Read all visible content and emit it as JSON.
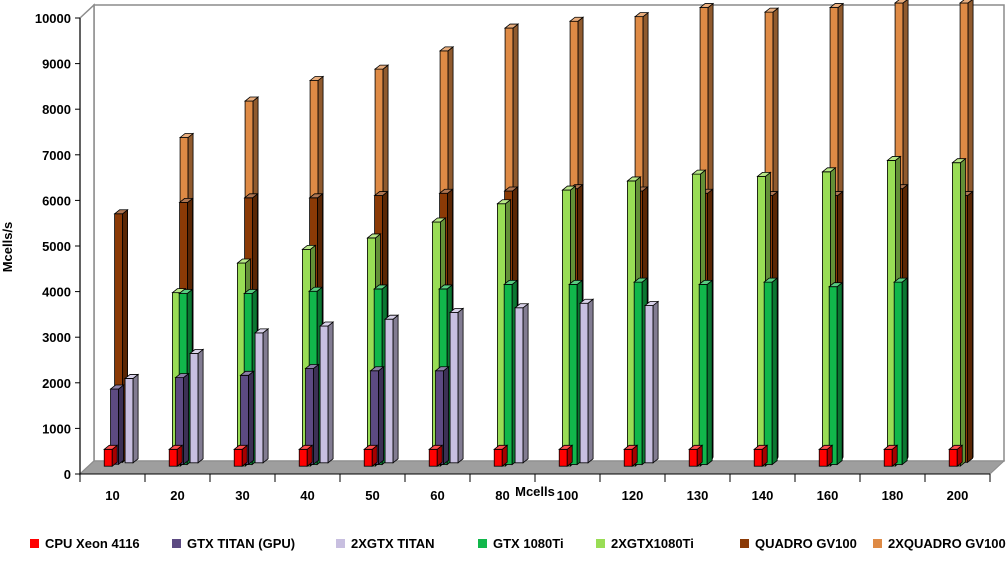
{
  "chart_data": {
    "type": "bar",
    "style": "3d-clustered",
    "title": "",
    "xlabel": "Mcells",
    "ylabel": "Mcells/s",
    "ylim": [
      0,
      10000
    ],
    "yticks": [
      "0",
      "1000",
      "2000",
      "3000",
      "4000",
      "5000",
      "6000",
      "7000",
      "8000",
      "9000",
      "10000"
    ],
    "grid": false,
    "legend_position": "bottom",
    "categories": [
      "10",
      "20",
      "30",
      "40",
      "50",
      "60",
      "80",
      "100",
      "120",
      "130",
      "140",
      "160",
      "180",
      "200"
    ],
    "series": [
      {
        "name": "CPU Xeon 4116",
        "color": "#ff0000",
        "values": [
          370,
          370,
          370,
          370,
          370,
          370,
          370,
          370,
          370,
          370,
          370,
          370,
          370,
          370
        ]
      },
      {
        "name": "GTX TITAN (GPU)",
        "color": "#5c4a82",
        "values": [
          1650,
          1900,
          1950,
          2100,
          2050,
          2050,
          null,
          null,
          null,
          null,
          null,
          null,
          null,
          null
        ]
      },
      {
        "name": "2XGTX TITAN",
        "color": "#c8bfe0",
        "values": [
          1850,
          2400,
          2850,
          3000,
          3150,
          3300,
          3400,
          3500,
          3450,
          null,
          null,
          null,
          null,
          null
        ]
      },
      {
        "name": "GTX 1080Ti",
        "color": "#11b74b",
        "values": [
          null,
          3750,
          3750,
          3800,
          3850,
          3850,
          3950,
          3950,
          4000,
          3950,
          4000,
          3900,
          4000,
          null
        ]
      },
      {
        "name": "2XGTX1080Ti",
        "color": "#99dd55",
        "values": [
          null,
          3800,
          4450,
          4750,
          5000,
          5350,
          5750,
          6050,
          6250,
          6400,
          6350,
          6450,
          6700,
          6650
        ]
      },
      {
        "name": "QUADRO GV100",
        "color": "#8b3a06",
        "values": [
          5450,
          5700,
          5800,
          5800,
          5850,
          5900,
          5950,
          6000,
          5950,
          5900,
          5850,
          5850,
          6000,
          5850
        ]
      },
      {
        "name": "2XQUADRO GV100",
        "color": "#de8a45",
        "values": [
          null,
          7100,
          7900,
          8350,
          8600,
          9000,
          9500,
          9650,
          9750,
          9950,
          9850,
          9950,
          10050,
          10050
        ]
      }
    ]
  }
}
